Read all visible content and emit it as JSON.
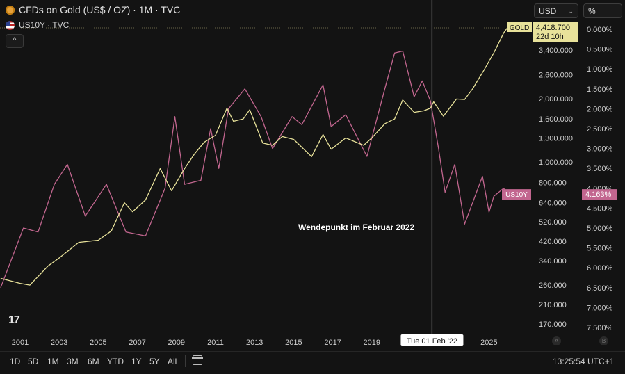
{
  "legend": {
    "primary": "CFDs on Gold (US$ / OZ) · 1M · TVC",
    "secondary": "US10Y · TVC"
  },
  "controls": {
    "currency": "USD",
    "percent": "%",
    "collapse": "^"
  },
  "annotation": "Wendepunkt im Februar 2022",
  "crosshair_date": "Tue 01 Feb '22",
  "gold_badge": {
    "label": "GOLD",
    "value": "4,418.700",
    "countdown": "22d 10h"
  },
  "us10y_badge": {
    "label": "US10Y",
    "value": "4.163%"
  },
  "timeframes": [
    "1D",
    "5D",
    "1M",
    "3M",
    "6M",
    "YTD",
    "1Y",
    "5Y",
    "All"
  ],
  "clock": "13:25:54 UTC+1",
  "scale_buttons": [
    "A",
    "B"
  ],
  "logo": "17",
  "colors": {
    "gold": "#e8e29a",
    "us10y": "#c2668f",
    "background": "#131313"
  },
  "chart_data": {
    "type": "line",
    "x_ticks": [
      "2001",
      "2003",
      "2005",
      "2007",
      "2009",
      "2011",
      "2013",
      "2015",
      "2017",
      "2019",
      "2025"
    ],
    "price_axis": {
      "scale": "log",
      "ticks": [
        "3,400.000",
        "2,600.000",
        "2,000.000",
        "1,600.000",
        "1,300.000",
        "1,000.000",
        "800.000",
        "640.000",
        "520.000",
        "420.000",
        "340.000",
        "260.000",
        "210.000",
        "170.000"
      ]
    },
    "yield_axis": {
      "inverted": true,
      "ticks": [
        "0.000%",
        "0.500%",
        "1.000%",
        "1.500%",
        "2.000%",
        "2.500%",
        "3.000%",
        "3.500%",
        "4.000%",
        "4.500%",
        "5.000%",
        "5.500%",
        "6.000%",
        "6.500%",
        "7.000%",
        "7.500%"
      ]
    },
    "series": [
      {
        "name": "GOLD",
        "x": [
          "2000-01",
          "2001-01",
          "2001-07",
          "2002-06",
          "2003-01",
          "2004-01",
          "2005-01",
          "2005-09",
          "2006-05",
          "2006-10",
          "2007-06",
          "2008-03",
          "2008-10",
          "2009-06",
          "2009-12",
          "2010-06",
          "2011-01",
          "2011-08",
          "2011-12",
          "2012-06",
          "2012-10",
          "2013-06",
          "2013-12",
          "2014-06",
          "2015-01",
          "2015-12",
          "2016-07",
          "2016-12",
          "2017-09",
          "2018-08",
          "2019-01",
          "2019-09",
          "2020-03",
          "2020-08",
          "2021-03",
          "2021-09",
          "2022-01",
          "2022-03",
          "2022-09",
          "2023-05",
          "2023-10",
          "2024-03",
          "2024-10",
          "2025-04",
          "2025-10",
          "2026-01"
        ],
        "values": [
          280,
          265,
          260,
          320,
          350,
          415,
          425,
          470,
          640,
          580,
          660,
          930,
          730,
          930,
          1090,
          1240,
          1340,
          1800,
          1560,
          1600,
          1770,
          1230,
          1200,
          1320,
          1280,
          1060,
          1350,
          1150,
          1300,
          1200,
          1300,
          1520,
          1600,
          1970,
          1720,
          1750,
          1800,
          1930,
          1650,
          1990,
          1980,
          2230,
          2740,
          3300,
          4100,
          4418.7
        ]
      },
      {
        "name": "US10Y",
        "x": [
          "2000-01",
          "2001-03",
          "2001-12",
          "2002-10",
          "2003-06",
          "2004-05",
          "2005-06",
          "2006-06",
          "2007-06",
          "2008-06",
          "2008-12",
          "2009-06",
          "2010-04",
          "2010-10",
          "2011-03",
          "2011-09",
          "2012-07",
          "2013-05",
          "2013-12",
          "2014-12",
          "2015-06",
          "2016-07",
          "2016-12",
          "2017-09",
          "2018-10",
          "2019-09",
          "2020-03",
          "2020-08",
          "2021-03",
          "2021-08",
          "2022-01",
          "2022-06",
          "2022-10",
          "2023-04",
          "2023-10",
          "2024-09",
          "2025-01",
          "2025-04",
          "2025-10",
          "2026-01"
        ],
        "values": [
          6.5,
          5.0,
          5.1,
          3.9,
          3.4,
          4.7,
          3.9,
          5.1,
          5.2,
          4.0,
          2.2,
          3.9,
          3.8,
          2.5,
          3.5,
          2.0,
          1.5,
          2.2,
          3.0,
          2.2,
          2.4,
          1.4,
          2.45,
          2.15,
          3.2,
          1.5,
          0.6,
          0.55,
          1.7,
          1.3,
          1.8,
          3.0,
          4.1,
          3.4,
          4.9,
          3.7,
          4.6,
          4.2,
          4.0,
          4.163
        ]
      }
    ]
  }
}
